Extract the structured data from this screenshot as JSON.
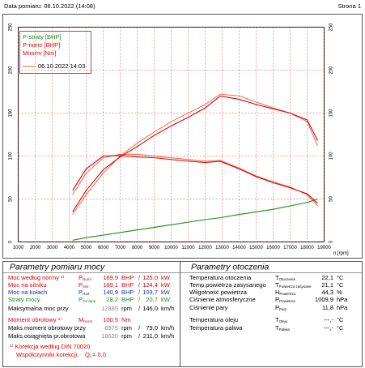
{
  "header": {
    "date": "Data pomiaru: 06.10.2022 (14:08)",
    "page": "Strona 1"
  },
  "chart_data": {
    "type": "line",
    "x": [
      4200,
      5000,
      6000,
      7000,
      8000,
      9000,
      10000,
      11000,
      12000,
      12885,
      14000,
      15000,
      16000,
      17000,
      18000,
      18620
    ],
    "xlim": [
      1000,
      19000
    ],
    "xticks": [
      1000,
      2000,
      3000,
      4000,
      5000,
      6000,
      7000,
      8000,
      9000,
      10000,
      11000,
      12000,
      13000,
      14000,
      15000,
      16000,
      17000,
      18000,
      19000
    ],
    "ylim": [
      0,
      250
    ],
    "yticks": [
      0,
      50,
      100,
      150,
      200,
      250
    ],
    "x_label": "n [rpm]",
    "grid": true,
    "series": [
      {
        "name": "P-straty [BHP]",
        "color": "#1a8f1a",
        "values": [
          2,
          5,
          8,
          11,
          14,
          17,
          20,
          23,
          26,
          28.2,
          32,
          35,
          38,
          42,
          46,
          50
        ]
      },
      {
        "name": "P-norm [BHP]",
        "color": "#e00000",
        "values": [
          35,
          60,
          84,
          99,
          111,
          124,
          135,
          145,
          156,
          169.9,
          166,
          160,
          155,
          150,
          142,
          118
        ]
      },
      {
        "name": "Mnorm [Nm]",
        "color": "#e00000",
        "values": [
          60,
          85,
          100,
          100.5,
          99,
          98,
          96,
          94,
          92.5,
          93.9,
          85,
          76,
          69,
          63,
          56,
          45
        ]
      }
    ],
    "reference": {
      "name": "06.10.2022 14:03",
      "color": "#e8603a",
      "series": [
        [
          32,
          55,
          80,
          100,
          115,
          128,
          140,
          150,
          160,
          172,
          170,
          163,
          156,
          150,
          140,
          112
        ],
        [
          55,
          80,
          98,
          102,
          102,
          100,
          98,
          96,
          94,
          95,
          86,
          77,
          70,
          64,
          55,
          42
        ]
      ]
    }
  },
  "power_panel": {
    "title": "Parametry pomiaru mocy",
    "rows": [
      {
        "label": "Moc według normy ¹⁾",
        "symbol": "P",
        "sub": "Norm",
        "value1": "169,9",
        "unit1": "BHP",
        "sep": "/",
        "value2": "125,0",
        "unit2": "kW",
        "color": "#e00000"
      },
      {
        "label": "Moc na silniku",
        "symbol": "P",
        "sub": "Mot",
        "value1": "169,1",
        "unit1": "BHP",
        "sep": "/",
        "value2": "124,4",
        "unit2": "kW",
        "color": "#e00000"
      },
      {
        "label": "Moc na kołach",
        "symbol": "P",
        "sub": "Rad",
        "value1": "140,9",
        "unit1": "BHP",
        "sep": "/",
        "value2": "103,7",
        "unit2": "kW",
        "color": "#1030d0"
      },
      {
        "label": "Straty mocy",
        "symbol": "P",
        "sub": "Schlepp",
        "value1": "28,2",
        "unit1": "BHP",
        "sep": "/",
        "value2": "20,7",
        "unit2": "kW",
        "color": "#1a8f1a"
      },
      {
        "label": "Maksymalna moc przy",
        "value1": "12885",
        "unit1": "rpm",
        "sep": "/",
        "value2": "146,0",
        "unit2": "km/h",
        "color": "#000000"
      },
      {
        "label": "Moment obrotowy ¹⁾",
        "symbol": "M",
        "sub": "Norm",
        "value1": "100,5",
        "unit1": "Nm",
        "color": "#e00000"
      },
      {
        "label": "Maks.moment obrotowy przy",
        "value1": "6975",
        "unit1": "rpm",
        "sep": "/",
        "value2": "79,0",
        "unit2": "km/h",
        "color": "#000000"
      },
      {
        "label": "Maks.osiągnięta pr.obrotowa",
        "value1": "18620",
        "unit1": "rpm",
        "sep": "/",
        "value2": "211,0",
        "unit2": "km/h",
        "color": "#000000"
      }
    ],
    "note": "¹⁾ Korekcja według DIN 70020",
    "factor": {
      "label": "Współczynniki korekcji:",
      "symbol": "Q",
      "sub": "v",
      "value": "= 0,0"
    }
  },
  "ambient_panel": {
    "title": "Parametry otoczenia",
    "rows": [
      {
        "label": "Temperatura otoczenia",
        "symbol": "T",
        "sub": "Otoczenia",
        "value": "22,1",
        "unit": "°C"
      },
      {
        "label": "Temp.powietrza zasysanego",
        "symbol": "T",
        "sub": "Powietrza zasysane",
        "value": "21,1",
        "unit": "°C"
      },
      {
        "label": "Wilgotność powietrza",
        "symbol": "H",
        "sub": "Powietrza",
        "value": "44,3",
        "unit": "%"
      },
      {
        "label": "Ciśnienie atmosferyczne",
        "symbol": "P",
        "sub": "Powietrza",
        "value": "1009,9",
        "unit": "hPa"
      },
      {
        "label": "Ciśnienie pary",
        "symbol": "P",
        "sub": "Pary",
        "value": "11,8",
        "unit": "hPa"
      },
      {
        "label": "Temperatura oleju",
        "symbol": "T",
        "sub": "Oleju",
        "value": "---,-",
        "unit": "°C"
      },
      {
        "label": "Temperatura paliwa",
        "symbol": "T",
        "sub": "Paliwa",
        "value": "---,-",
        "unit": "°C"
      }
    ]
  }
}
